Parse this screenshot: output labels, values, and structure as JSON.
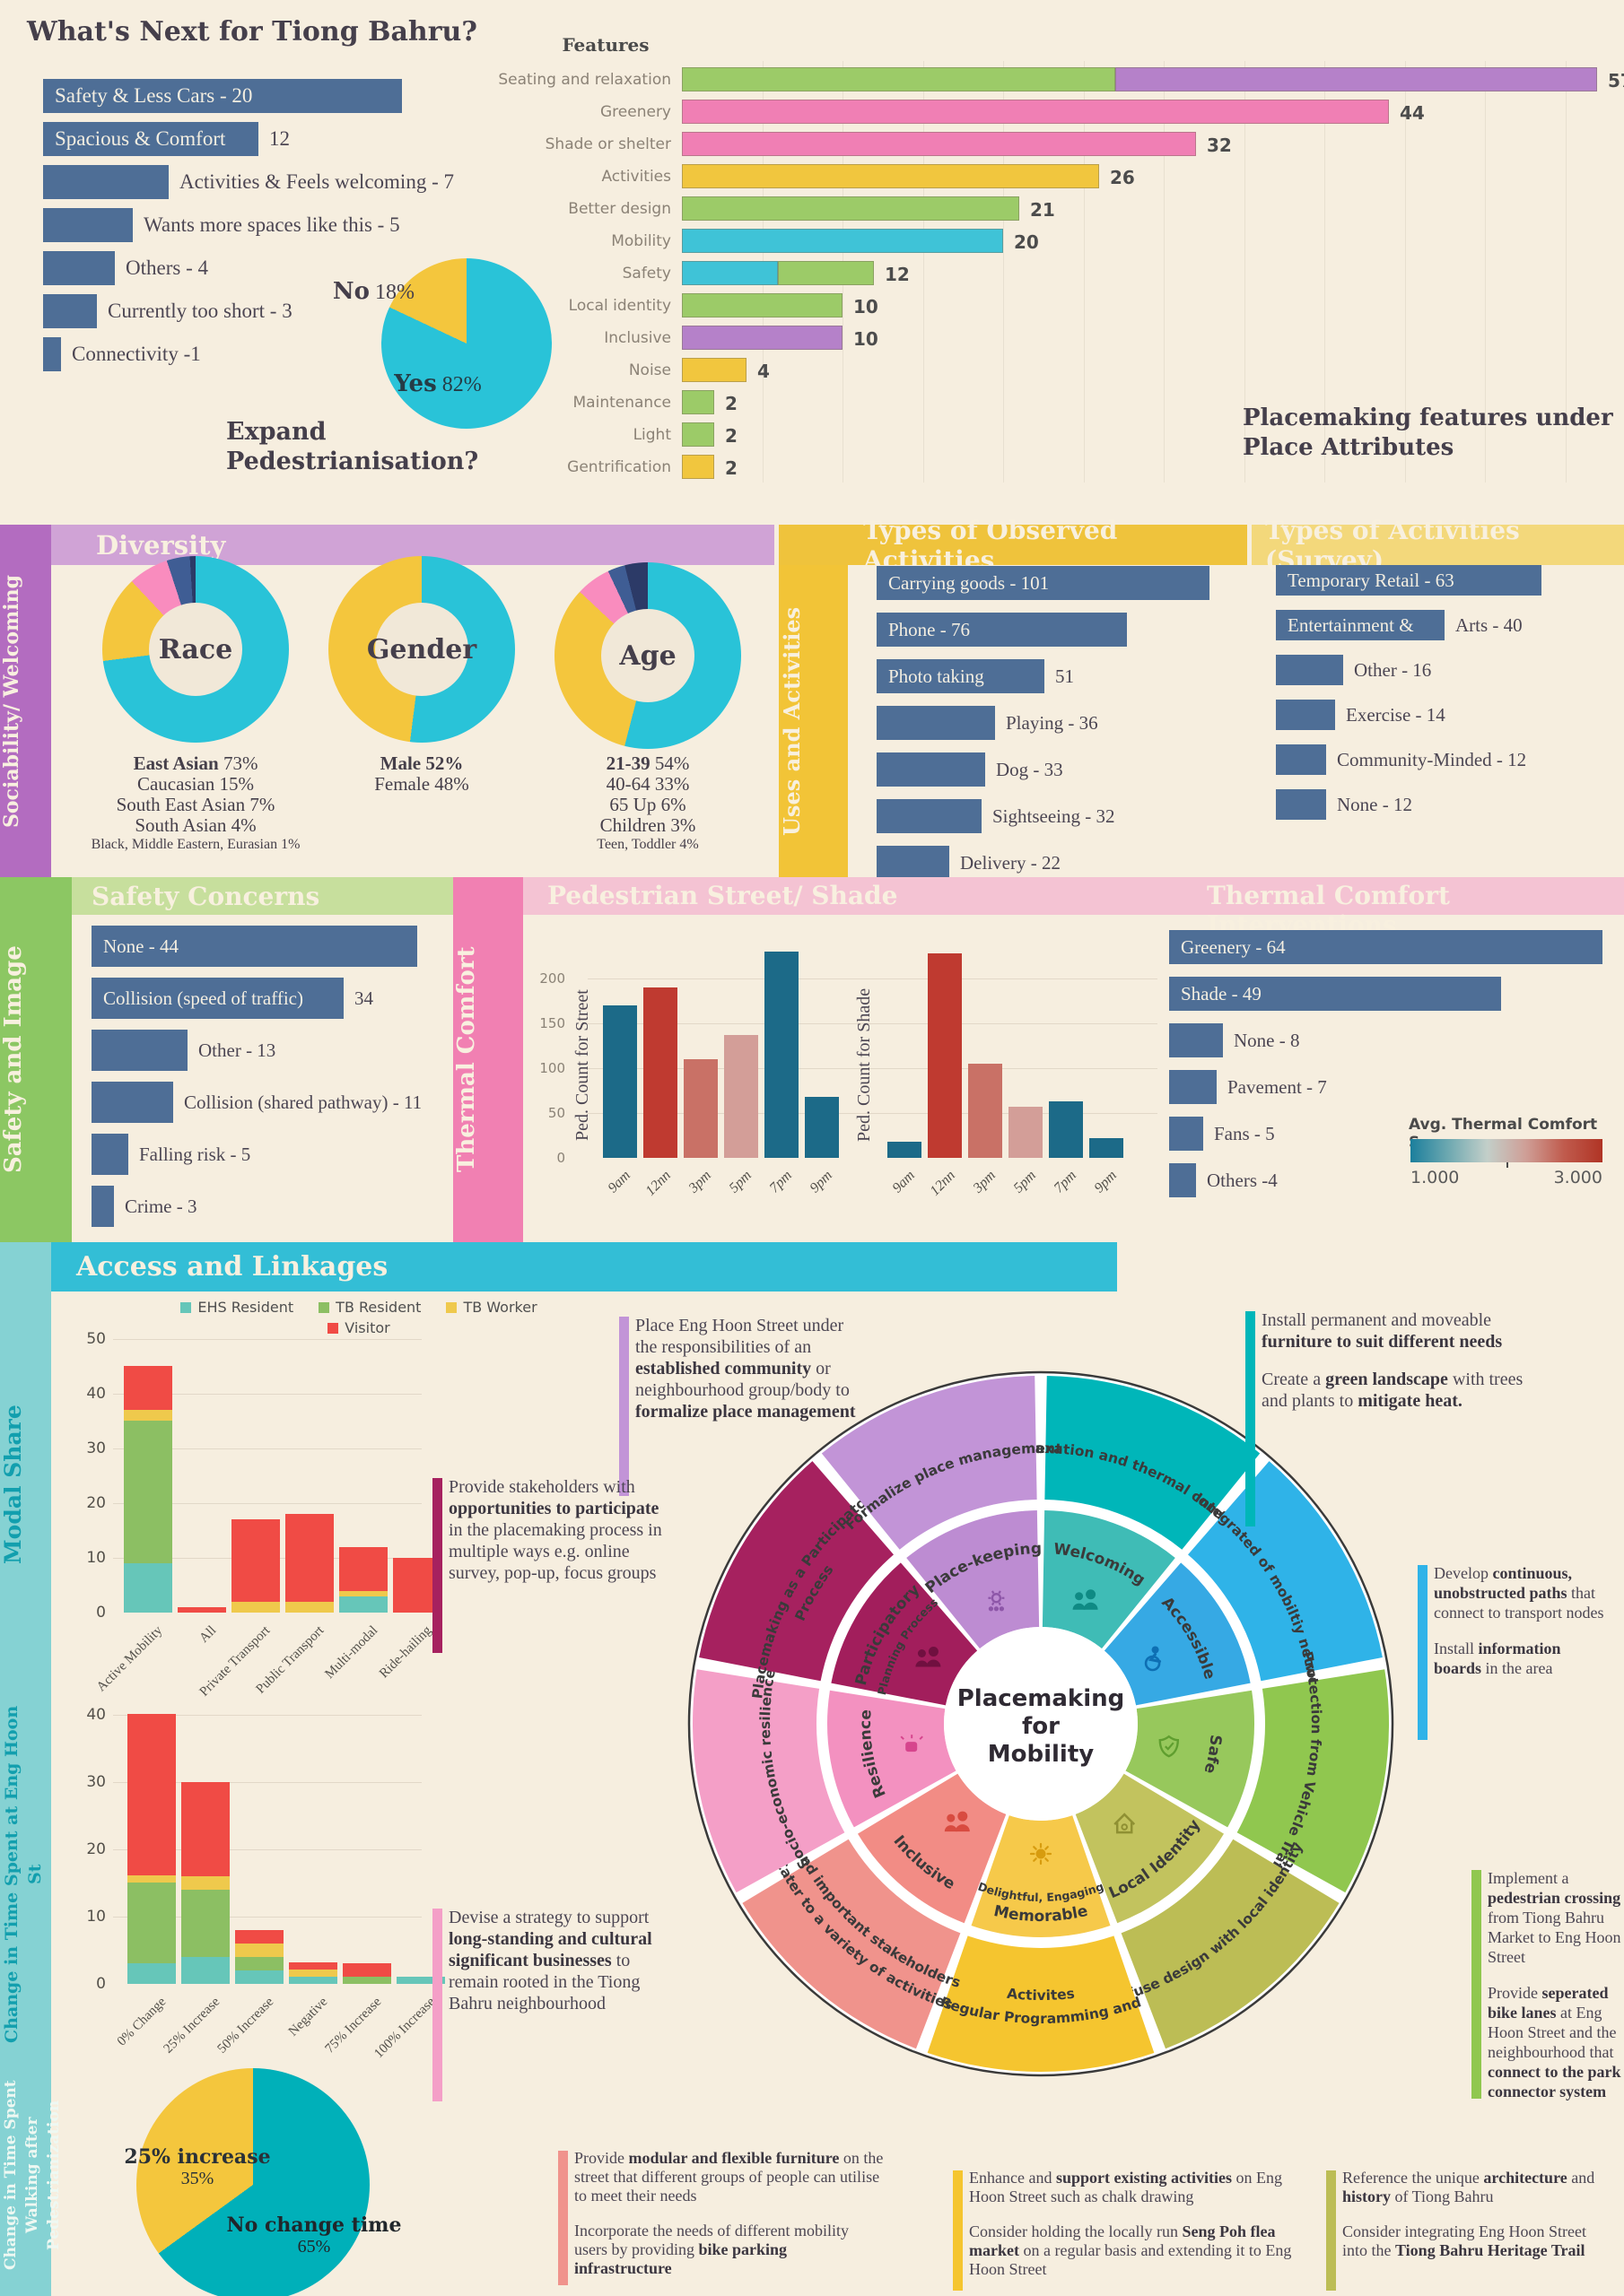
{
  "colors": {
    "slate": "#4e6e96",
    "page": "#f6eedf",
    "green": "#9ccb68",
    "purple": "#b581c9",
    "pink": "#f07fb4",
    "yellow": "#f1c63e",
    "cyan": "#3fc3d7",
    "donut_cyan": "#29c3d8",
    "donut_yellow": "#f4c63d",
    "donut_pink": "#f98cbe",
    "donut_steel": "#3f5d94",
    "donut_navy": "#2c3a67",
    "teal": "#1c6a88",
    "red": "#bf3a30",
    "salmon": "#c97166",
    "salmon_light": "#d39e98",
    "ehs": "#66c6b9",
    "tbres": "#8cbf63",
    "tbw": "#efc94c",
    "visitor": "#f04b45",
    "teal2": "#00b0b9",
    "band_purple_side": "#b36cc0",
    "band_purple": "#d0a3d6",
    "band_yellow": "#efc33c",
    "band_yellow_light": "#f3d87b",
    "band_yellow_side": "#f2c437",
    "band_green_side": "#8cc763",
    "band_green": "#c7df9d",
    "band_pink_side": "#f180b2",
    "band_pink": "#f4c3d3",
    "band_cyan": "#33bed6",
    "band_teal_side": "#85d2d3"
  },
  "top": {
    "title": "What's Next for Tiong Bahru?",
    "wish_bars": [
      {
        "inside": "Safety & Less Cars - 20",
        "value": 20
      },
      {
        "inside": "Spacious & Comfort",
        "outside": "12",
        "value": 12
      },
      {
        "outside": "Activities & Feels welcoming  - 7",
        "value": 7
      },
      {
        "outside": "Wants more spaces like this - 5",
        "value": 5
      },
      {
        "outside": "Others - 4",
        "value": 4
      },
      {
        "outside": "Currently too short - 3",
        "value": 3
      },
      {
        "outside": "Connectivity -1",
        "value": 1
      }
    ],
    "pie": {
      "no_bold": "No",
      "no_pct": "18%",
      "yes_bold": "Yes",
      "yes_pct": "82%",
      "yes_value": 82,
      "no_value": 18,
      "title_line1": "Expand",
      "title_line2": "Pedestrianisation?"
    },
    "features": {
      "title": "Features",
      "caption": "Placemaking features under Place Attributes",
      "rows": [
        {
          "label": "Seating and relaxation",
          "value": 57,
          "segs": [
            [
              "green",
              27
            ],
            [
              "purple",
              30
            ]
          ]
        },
        {
          "label": "Greenery",
          "value": 44,
          "segs": [
            [
              "pink",
              44
            ]
          ]
        },
        {
          "label": "Shade or shelter",
          "value": 32,
          "segs": [
            [
              "pink",
              32
            ]
          ]
        },
        {
          "label": "Activities",
          "value": 26,
          "segs": [
            [
              "yellow",
              26
            ]
          ]
        },
        {
          "label": "Better design",
          "value": 21,
          "segs": [
            [
              "green",
              21
            ]
          ]
        },
        {
          "label": "Mobility",
          "value": 20,
          "segs": [
            [
              "cyan",
              20
            ]
          ]
        },
        {
          "label": "Safety",
          "value": 12,
          "segs": [
            [
              "cyan",
              6
            ],
            [
              "green",
              6
            ]
          ]
        },
        {
          "label": "Local identity",
          "value": 10,
          "segs": [
            [
              "green",
              10
            ]
          ]
        },
        {
          "label": "Inclusive",
          "value": 10,
          "segs": [
            [
              "purple",
              10
            ]
          ]
        },
        {
          "label": "Noise",
          "value": 4,
          "segs": [
            [
              "yellow",
              4
            ]
          ]
        },
        {
          "label": "Maintenance",
          "value": 2,
          "segs": [
            [
              "green",
              2
            ]
          ]
        },
        {
          "label": "Light",
          "value": 2,
          "segs": [
            [
              "green",
              2
            ]
          ]
        },
        {
          "label": "Gentrification",
          "value": 2,
          "segs": [
            [
              "yellow",
              2
            ]
          ]
        }
      ]
    }
  },
  "social": {
    "sidebar": "Sociability/ Welcoming",
    "header": "Diversity",
    "uses_sidebar": "Uses and Activities",
    "donuts": [
      {
        "label": "Race",
        "slices": [
          [
            "donut_cyan",
            73
          ],
          [
            "donut_yellow",
            15
          ],
          [
            "donut_pink",
            7
          ],
          [
            "donut_steel",
            4
          ],
          [
            "donut_navy",
            1
          ]
        ],
        "stats": [
          {
            "html": "<b>East Asian</b> 73%"
          },
          {
            "html": "Caucasian 15%"
          },
          {
            "html": "South East Asian 7%"
          },
          {
            "html": "South Asian 4%"
          },
          {
            "html": "Black, Middle Eastern, Eurasian 1%",
            "small": true
          }
        ]
      },
      {
        "label": "Gender",
        "slices": [
          [
            "donut_cyan",
            52
          ],
          [
            "donut_yellow",
            48
          ]
        ],
        "stats": [
          {
            "html": "<b>Male 52%</b>"
          },
          {
            "html": "Female 48%"
          }
        ]
      },
      {
        "label": "Age",
        "slices": [
          [
            "donut_cyan",
            54
          ],
          [
            "donut_yellow",
            33
          ],
          [
            "donut_pink",
            6
          ],
          [
            "donut_steel",
            3
          ],
          [
            "donut_navy",
            4
          ]
        ],
        "stats": [
          {
            "html": "<b>21-39</b> 54%"
          },
          {
            "html": "40-64 33%"
          },
          {
            "html": "65 Up 6%"
          },
          {
            "html": "Children 3%"
          },
          {
            "html": "Teen, Toddler 4%",
            "small": true
          }
        ]
      }
    ],
    "observed": {
      "header": "Types of Observed Activities",
      "rows": [
        {
          "inside": "Carrying goods - 101",
          "value": 101
        },
        {
          "inside": "Phone - 76",
          "value": 76
        },
        {
          "inside": "Photo taking",
          "outside": "51",
          "value": 51
        },
        {
          "outside": "Playing - 36",
          "value": 36
        },
        {
          "outside": "Dog - 33",
          "value": 33
        },
        {
          "outside": "Sightseeing - 32",
          "value": 32
        },
        {
          "outside": "Delivery - 22",
          "value": 22
        }
      ]
    },
    "survey": {
      "header": "Types of Activities (Survey)",
      "rows": [
        {
          "inside": "Temporary Retail - 63",
          "value": 63
        },
        {
          "inside": "Entertainment &",
          "outside": "Arts - 40",
          "value": 40
        },
        {
          "outside": "Other - 16",
          "value": 16
        },
        {
          "outside": "Exercise - 14",
          "value": 14
        },
        {
          "outside": "Community-Minded - 12",
          "value": 12
        },
        {
          "outside": "None - 12",
          "value": 12
        }
      ]
    }
  },
  "safety": {
    "sidebar": "Safety and Image",
    "header": "Safety Concerns",
    "rows": [
      {
        "inside": "None - 44",
        "value": 44
      },
      {
        "inside": "Collision (speed of traffic)",
        "outside": "34",
        "value": 34
      },
      {
        "outside": "Other - 13",
        "value": 13
      },
      {
        "outside": "Collision (shared pathway) - 11",
        "value": 11
      },
      {
        "outside": "Falling risk - 5",
        "value": 5
      },
      {
        "outside": "Crime - 3",
        "value": 3
      }
    ]
  },
  "thermal": {
    "sidebar": "Thermal Comfort",
    "header_ped": "Pedestrian Street/ Shade",
    "header_int": "Thermal Comfort Interventions",
    "yticks": [
      0,
      50,
      100,
      150,
      200
    ],
    "ped_charts": [
      {
        "ylabel": "Ped. Count for Street",
        "x": [
          "9am",
          "12nn",
          "3pm",
          "5pm",
          "7pm",
          "9pm"
        ],
        "values": [
          170,
          190,
          110,
          137,
          230,
          68
        ],
        "colors": [
          "teal",
          "red",
          "salmon",
          "salmon_light",
          "teal",
          "teal"
        ]
      },
      {
        "ylabel": "Ped. Count for Shade",
        "x": [
          "9am",
          "12nn",
          "3pm",
          "5pm",
          "7pm",
          "9pm"
        ],
        "values": [
          18,
          228,
          105,
          57,
          63,
          22
        ],
        "colors": [
          "teal",
          "red",
          "salmon",
          "salmon_light",
          "teal",
          "teal"
        ]
      }
    ],
    "interventions": [
      {
        "inside": "Greenery  - 64",
        "value": 64
      },
      {
        "inside": "Shade - 49",
        "value": 49
      },
      {
        "outside": "None - 8",
        "value": 8
      },
      {
        "outside": "Pavement - 7",
        "value": 7
      },
      {
        "outside": "Fans - 5",
        "value": 5
      },
      {
        "outside": "Others -4",
        "value": 4
      }
    ],
    "legend": {
      "title": "Avg. Thermal Comfort S..",
      "min": "1.000",
      "max": "3.000",
      "gradient": [
        "#1b7f9c",
        "#6fa9b1",
        "#c3cfc9",
        "#cf9f97",
        "#c05b4d",
        "#b03425"
      ]
    }
  },
  "bottom": {
    "header": "Access and Linkages",
    "sidebar_modal": "Modal Share",
    "sidebar_time1": "Change in Time Spent at Eng Hoon St",
    "sidebar_time2": "Change in Time Spent Walking after Pedestrianization",
    "legend": [
      {
        "name": "EHS Resident",
        "key": "ehs"
      },
      {
        "name": "TB Resident",
        "key": "tbres"
      },
      {
        "name": "TB Worker",
        "key": "tbw"
      },
      {
        "name": "Visitor",
        "key": "visitor"
      }
    ],
    "modal_chart": {
      "yticks": [
        0,
        10,
        20,
        30,
        40,
        50
      ],
      "categories": [
        "Active Mobility",
        "All",
        "Private Transport",
        "Public Transport",
        "Multi-modal",
        "Ride-hailing"
      ],
      "series": [
        {
          "key": "ehs",
          "values": [
            9,
            0,
            0,
            0,
            3,
            0
          ]
        },
        {
          "key": "tbres",
          "values": [
            26,
            0,
            0,
            0,
            0,
            0
          ]
        },
        {
          "key": "tbw",
          "values": [
            2,
            0,
            2,
            2,
            1,
            0
          ]
        },
        {
          "key": "visitor",
          "values": [
            8,
            1,
            15,
            16,
            8,
            10
          ]
        }
      ]
    },
    "time_chart": {
      "yticks": [
        0,
        10,
        20,
        30,
        40
      ],
      "categories": [
        "0% Change",
        "25% Increase",
        "50% Increase",
        "Negative",
        "75% Increase",
        "100% Increase"
      ],
      "series": [
        {
          "key": "ehs",
          "values": [
            3,
            4,
            2,
            1,
            0,
            1
          ]
        },
        {
          "key": "tbres",
          "values": [
            12,
            10,
            2,
            0,
            1,
            0
          ]
        },
        {
          "key": "tbw",
          "values": [
            1,
            2,
            2,
            1,
            0,
            0
          ]
        },
        {
          "key": "visitor",
          "values": [
            24,
            14,
            2,
            1,
            2,
            0
          ]
        }
      ]
    },
    "pie": {
      "slices": [
        [
          "teal2",
          65
        ],
        [
          "donut_yellow",
          35
        ]
      ],
      "label1_b": "25% increase",
      "label1": "35%",
      "label2_b": "No change time",
      "label2": "65%"
    }
  },
  "wheel": {
    "center": [
      "Placemaking",
      "for",
      "Mobility"
    ],
    "segments": [
      {
        "inner": "Welcoming",
        "outer": [
          "Relaxation and thermal comfort"
        ],
        "cin": "#3fbcb6",
        "cout": "#00b6b9",
        "icon": "people",
        "ic": "#0f8a84"
      },
      {
        "inner": "Accessible",
        "outer": [
          "Integrated of mobiltiy network"
        ],
        "cin": "#36a9e4",
        "cout": "#2fb3e8",
        "icon": "wheel",
        "ic": "#0e6fb3"
      },
      {
        "inner": "Safe",
        "outer": [
          "Protection from Vehicle Traffic"
        ],
        "cin": "#97c85c",
        "cout": "#90c74f",
        "icon": "shield",
        "ic": "#5f9e2f"
      },
      {
        "inner": "Local Identity",
        "outer": [
          "Infuse  design with local identity"
        ],
        "cin": "#c2c35e",
        "cout": "#bcbd55",
        "icon": "house",
        "ic": "#8f9033"
      },
      {
        "inner": "Memorable",
        "inner2": "Delightful, Engaging",
        "outer": [
          "Regular Programming and",
          "Activites"
        ],
        "cin": "#f6c94a",
        "cout": "#f5c52f",
        "icon": "sun",
        "ic": "#d79c0f"
      },
      {
        "inner": "Inclusive",
        "outer": [
          "Cater to a variety of activities",
          "and important stakeholders"
        ],
        "cin": "#f28c85",
        "cout": "#f0938c",
        "icon": "people",
        "ic": "#d84b40"
      },
      {
        "inner": "Resilience",
        "outer": [
          "Socio-economic resilience"
        ],
        "cin": "#f391c0",
        "cout": "#f49fc7",
        "icon": "fist",
        "ic": "#d6458d"
      },
      {
        "inner": "Participatory",
        "inner2": "Planning Process",
        "outer": [
          "Placemaking as a Participatory",
          "Process"
        ],
        "cin": "#a21e5c",
        "cout": "#a6215f",
        "icon": "people",
        "ic": "#701040"
      },
      {
        "inner": "Place-keeping",
        "outer": [
          "Formalize place management"
        ],
        "cin": "#bd8cd2",
        "cout": "#c294d7",
        "icon": "gear",
        "ic": "#8d56a8"
      }
    ]
  },
  "callouts": [
    {
      "color": "#c294d7",
      "html": "Place Eng Hoon Street under the responsibilities of an <b>established community</b> or neighbourhood group/body to <b>formalize place management</b>"
    },
    {
      "color": "#00b6b9",
      "html": "<p>Install permanent and moveable <b>furniture to suit different needs</b></p><p>Create a <b>green landscape</b> with trees and plants to <b>mitigate heat.</b></p>"
    },
    {
      "color": "#a6215f",
      "html": "Provide stakeholders with <b>opportunities to participate</b> in the placemaking process in multiple ways e.g. online survey, pop-up, focus groups"
    },
    {
      "color": "#2fb3e8",
      "html": "<p>Develop <b>continuous, unobstructed paths</b> that connect to transport nodes</p><p>Install <b>information boards</b> in the area</p>"
    },
    {
      "color": "#f49fc7",
      "html": "Devise a strategy to support <b>long-standing and cultural significant businesses</b> to remain rooted in the Tiong Bahru neighbourhood"
    },
    {
      "color": "#90c74f",
      "html": "<p>Implement a <b>pedestrian crossing</b> from Tiong Bahru Market to Eng Hoon Street</p><p>Provide <b>seperated bike lanes</b> at Eng Hoon Street and the neighbourhood that <b>connect to the park connector system</b></p>"
    },
    {
      "color": "#f0938c",
      "html": "<p>Provide <b>modular and flexible furniture</b> on the street that different groups of people can utilise to meet their needs</p><p>Incorporate the needs of different mobility users by providing <b>bike parking infrastructure</b></p>"
    },
    {
      "color": "#f5c52f",
      "html": "<p>Enhance and <b>support existing activities</b> on Eng Hoon Street such as chalk drawing</p><p>Consider holding the locally run <b>Seng Poh flea market</b> on a regular basis and extending it to Eng Hoon Street</p>"
    },
    {
      "color": "#bcbd55",
      "html": "<p>Reference the unique <b>architecture</b> and <b>history</b> of Tiong Bahru</p><p>Consider integrating Eng Hoon Street into the <b>Tiong Bahru Heritage Trail</b></p>"
    }
  ]
}
